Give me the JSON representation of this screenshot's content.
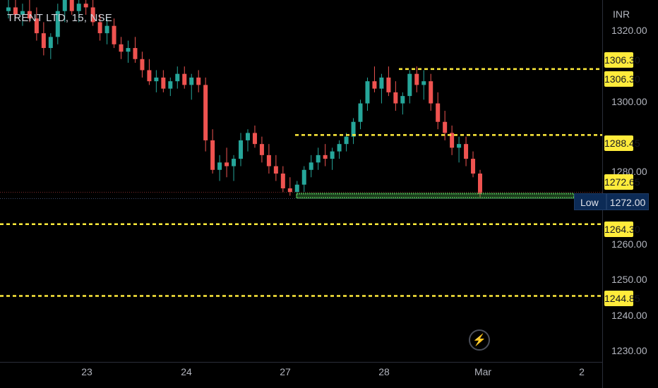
{
  "header": {
    "symbol": "TRENT LTD, 15, NSE",
    "currency": "INR"
  },
  "colors": {
    "up": "#26a69a",
    "down": "#ef5350",
    "level": "#ffeb3b",
    "zone": "#4caf50",
    "tag_bg": "#0c2b56",
    "background": "#000000"
  },
  "low_tag": {
    "label": "Low",
    "price": "1272.00"
  },
  "replay": {
    "icon": "lightning-icon"
  },
  "chart_data": {
    "type": "candlestick",
    "title": "TRENT LTD, 15, NSE",
    "y_unit": "INR",
    "ylim": [
      1227,
      1325
    ],
    "price_ticks": [
      "1320.00",
      "1300.00",
      "1280.00",
      "1260.00",
      "1250.00",
      "1240.00",
      "1230.00"
    ],
    "price_tick_values": [
      1320,
      1300,
      1280,
      1260,
      1250,
      1240,
      1230
    ],
    "x_ticks": [
      "23",
      "24",
      "27",
      "28",
      "Mar",
      "2"
    ],
    "levels": [
      {
        "price": 1306.3,
        "label": "1306.30"
      },
      {
        "price": 1288.45,
        "label": "1288.45"
      },
      {
        "price": 1264.3,
        "label": "1264.30"
      },
      {
        "price": 1244.85,
        "label": "1244.85"
      }
    ],
    "level_labels_extra": [
      {
        "price": 1310.5,
        "label": "1306.30"
      },
      {
        "price": 1276.7,
        "label": "1272.65"
      }
    ],
    "support_zone": {
      "price": 1272.0
    },
    "last_low": 1272.0,
    "candles": [
      [
        1322,
        1326,
        1320,
        1323
      ],
      [
        1323,
        1327,
        1320,
        1321
      ],
      [
        1321,
        1324,
        1318,
        1322
      ],
      [
        1322,
        1325,
        1319,
        1320
      ],
      [
        1320,
        1323,
        1314,
        1316
      ],
      [
        1316,
        1319,
        1310,
        1312
      ],
      [
        1312,
        1316,
        1309,
        1315
      ],
      [
        1315,
        1324,
        1313,
        1322
      ],
      [
        1322,
        1328,
        1319,
        1325
      ],
      [
        1325,
        1327,
        1321,
        1322
      ],
      [
        1322,
        1326,
        1319,
        1324
      ],
      [
        1324,
        1327,
        1321,
        1323
      ],
      [
        1323,
        1326,
        1318,
        1319
      ],
      [
        1319,
        1321,
        1314,
        1316
      ],
      [
        1316,
        1320,
        1313,
        1318
      ],
      [
        1318,
        1320,
        1312,
        1313
      ],
      [
        1313,
        1315,
        1309,
        1311
      ],
      [
        1311,
        1314,
        1308,
        1312
      ],
      [
        1312,
        1315,
        1308,
        1309
      ],
      [
        1309,
        1311,
        1304,
        1306
      ],
      [
        1306,
        1309,
        1302,
        1303
      ],
      [
        1303,
        1306,
        1300,
        1304
      ],
      [
        1304,
        1306,
        1300,
        1301
      ],
      [
        1301,
        1304,
        1299,
        1303
      ],
      [
        1303,
        1307,
        1301,
        1305
      ],
      [
        1305,
        1307,
        1301,
        1302
      ],
      [
        1302,
        1305,
        1298,
        1304
      ],
      [
        1304,
        1306,
        1300,
        1302
      ],
      [
        1302,
        1304,
        1284,
        1287
      ],
      [
        1287,
        1290,
        1278,
        1279
      ],
      [
        1279,
        1283,
        1276,
        1281
      ],
      [
        1281,
        1285,
        1277,
        1280
      ],
      [
        1280,
        1283,
        1276,
        1282
      ],
      [
        1282,
        1289,
        1280,
        1287
      ],
      [
        1287,
        1290,
        1284,
        1289
      ],
      [
        1289,
        1291,
        1285,
        1286
      ],
      [
        1286,
        1288,
        1281,
        1283
      ],
      [
        1283,
        1286,
        1278,
        1280
      ],
      [
        1280,
        1283,
        1276,
        1278
      ],
      [
        1278,
        1280,
        1273,
        1274
      ],
      [
        1274,
        1277,
        1272,
        1273
      ],
      [
        1273,
        1276,
        1272,
        1275
      ],
      [
        1275,
        1280,
        1273,
        1279
      ],
      [
        1279,
        1283,
        1277,
        1281
      ],
      [
        1281,
        1285,
        1279,
        1283
      ],
      [
        1283,
        1286,
        1280,
        1282
      ],
      [
        1282,
        1285,
        1279,
        1284
      ],
      [
        1284,
        1287,
        1282,
        1286
      ],
      [
        1286,
        1289,
        1284,
        1288
      ],
      [
        1288,
        1293,
        1286,
        1292
      ],
      [
        1292,
        1298,
        1290,
        1297
      ],
      [
        1297,
        1304,
        1295,
        1303
      ],
      [
        1303,
        1307,
        1300,
        1301
      ],
      [
        1301,
        1305,
        1297,
        1304
      ],
      [
        1304,
        1307,
        1299,
        1300
      ],
      [
        1300,
        1303,
        1295,
        1297
      ],
      [
        1297,
        1300,
        1294,
        1299
      ],
      [
        1299,
        1306,
        1297,
        1305
      ],
      [
        1305,
        1307,
        1300,
        1302
      ],
      [
        1302,
        1306,
        1298,
        1303
      ],
      [
        1303,
        1305,
        1295,
        1297
      ],
      [
        1297,
        1300,
        1290,
        1292
      ],
      [
        1292,
        1295,
        1287,
        1289
      ],
      [
        1289,
        1291,
        1283,
        1285
      ],
      [
        1285,
        1288,
        1281,
        1286
      ],
      [
        1286,
        1288,
        1280,
        1282
      ],
      [
        1282,
        1284,
        1277,
        1278
      ],
      [
        1278,
        1279,
        1271.5,
        1272.5
      ]
    ]
  }
}
